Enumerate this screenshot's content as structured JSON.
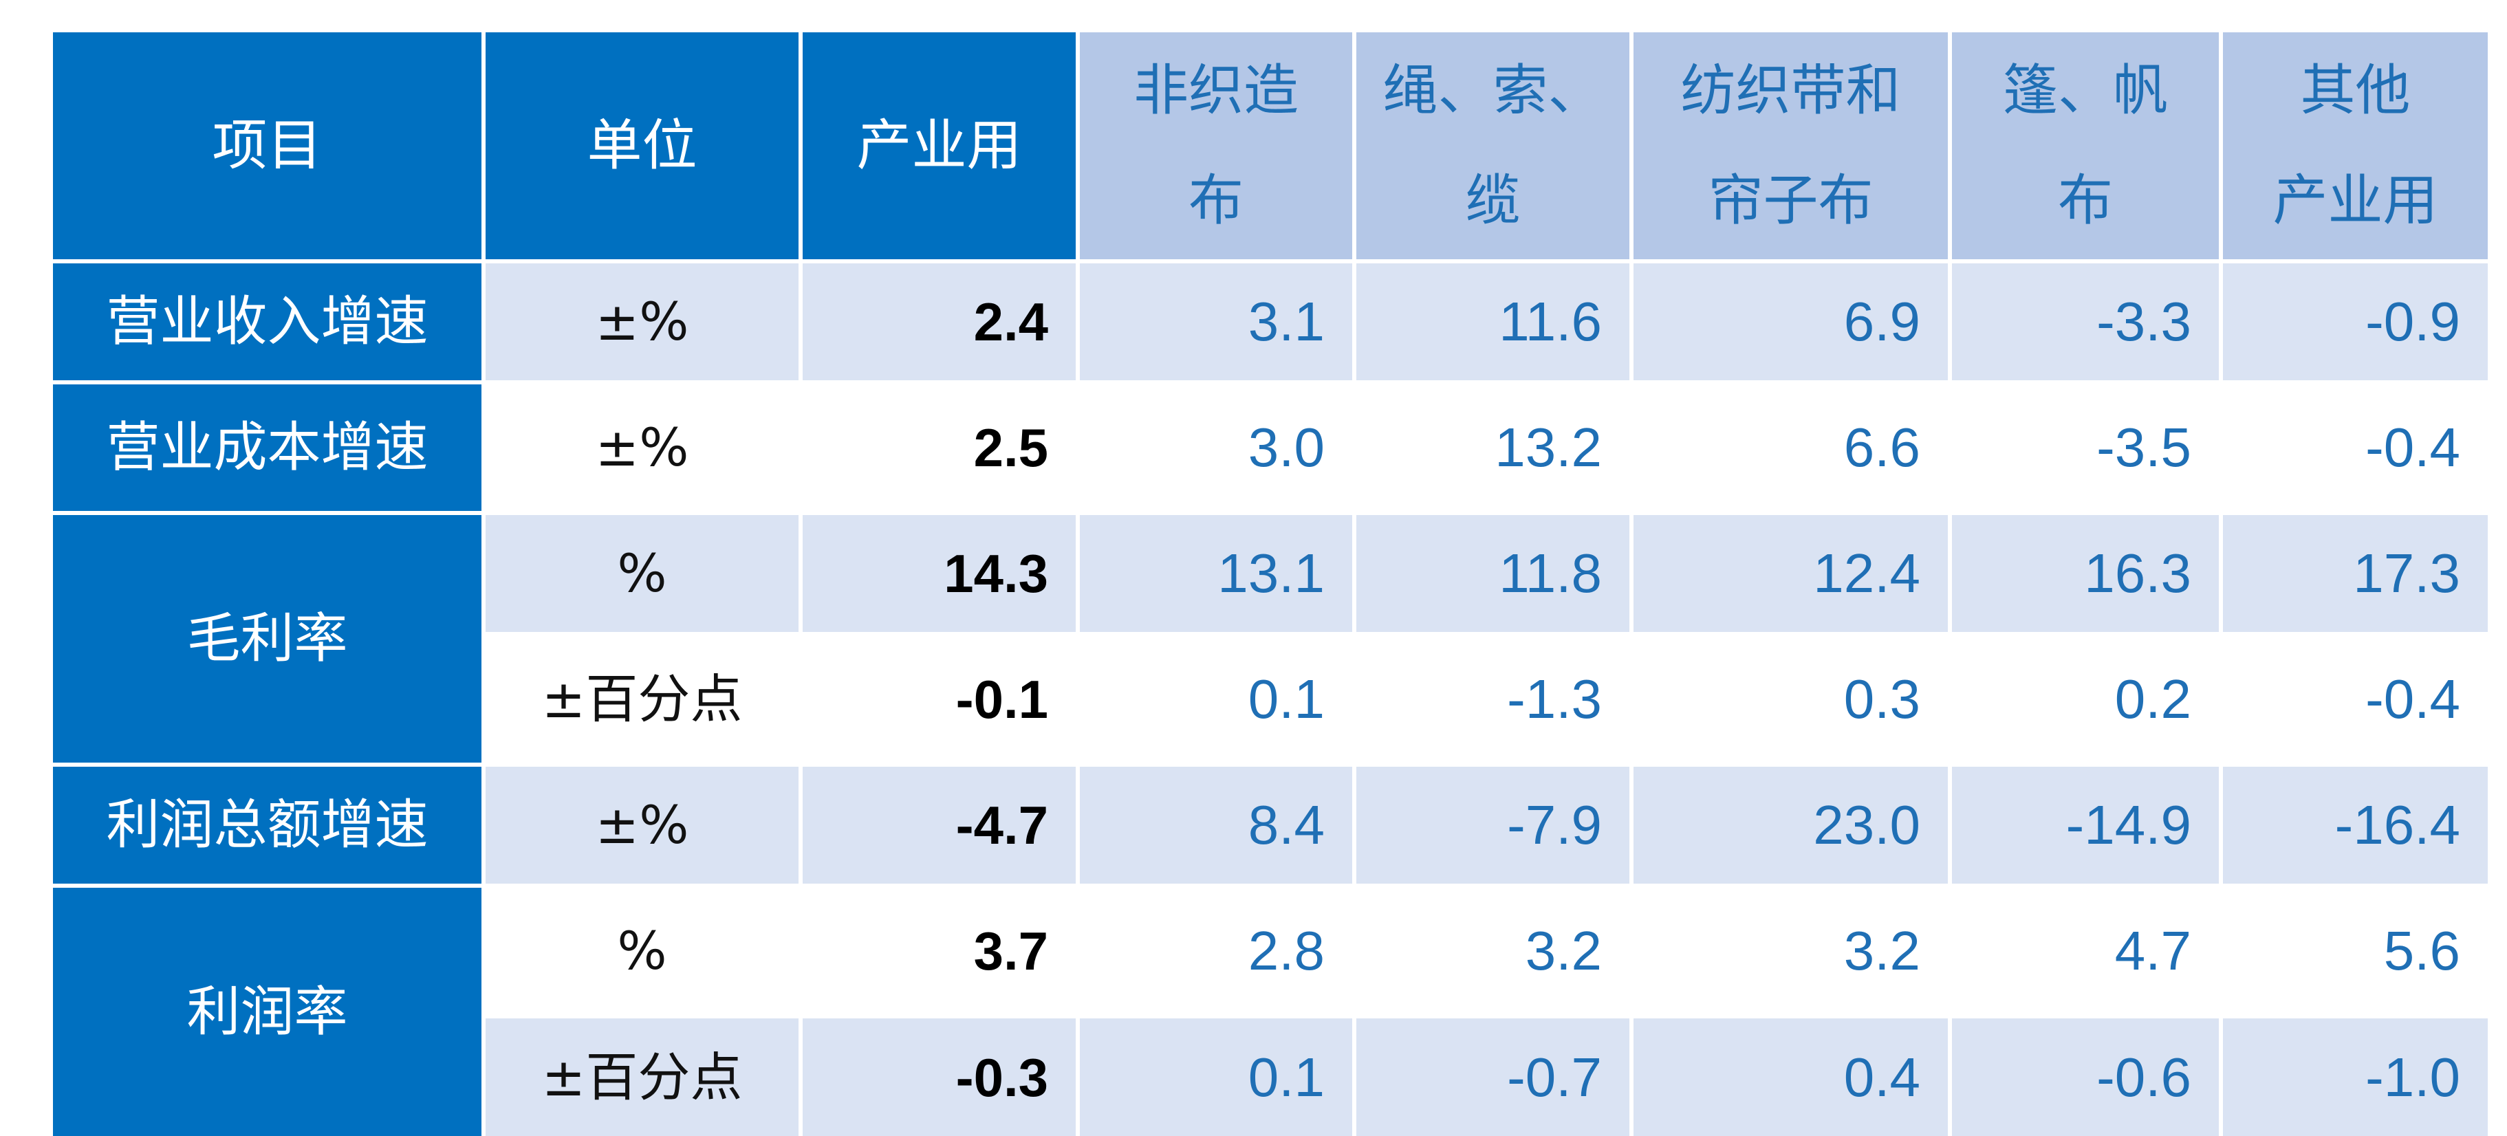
{
  "columns": [
    "项目",
    "单位",
    "产业用",
    "非织造\n布",
    "绳、索、\n缆",
    "纺织带和\n帘子布",
    "篷、帆\n布",
    "其他\n产业用"
  ],
  "items": [
    "营业收入增速",
    "营业成本增速",
    "毛利率",
    "利润总额增速",
    "利润率"
  ],
  "rows": [
    {
      "unit": "±%",
      "values": [
        "2.4",
        "3.1",
        "11.6",
        "6.9",
        "-3.3",
        "-0.9"
      ]
    },
    {
      "unit": "±%",
      "values": [
        "2.5",
        "3.0",
        "13.2",
        "6.6",
        "-3.5",
        "-0.4"
      ]
    },
    {
      "unit": "%",
      "values": [
        "14.3",
        "13.1",
        "11.8",
        "12.4",
        "16.3",
        "17.3"
      ]
    },
    {
      "unit": "±百分点",
      "values": [
        "-0.1",
        "0.1",
        "-1.3",
        "0.3",
        "0.2",
        "-0.4"
      ]
    },
    {
      "unit": "±%",
      "values": [
        "-4.7",
        "8.4",
        "-7.9",
        "23.0",
        "-14.9",
        "-16.4"
      ]
    },
    {
      "unit": "%",
      "values": [
        "3.7",
        "2.8",
        "3.2",
        "3.2",
        "4.7",
        "5.6"
      ]
    },
    {
      "unit": "±百分点",
      "values": [
        "-0.3",
        "0.1",
        "-0.7",
        "0.4",
        "-0.6",
        "-1.0"
      ]
    }
  ],
  "colors": {
    "header_dark": "#0070c0",
    "header_light": "#b4c7e7",
    "band": "#dae3f3",
    "value_text": "#1f6fb5"
  }
}
